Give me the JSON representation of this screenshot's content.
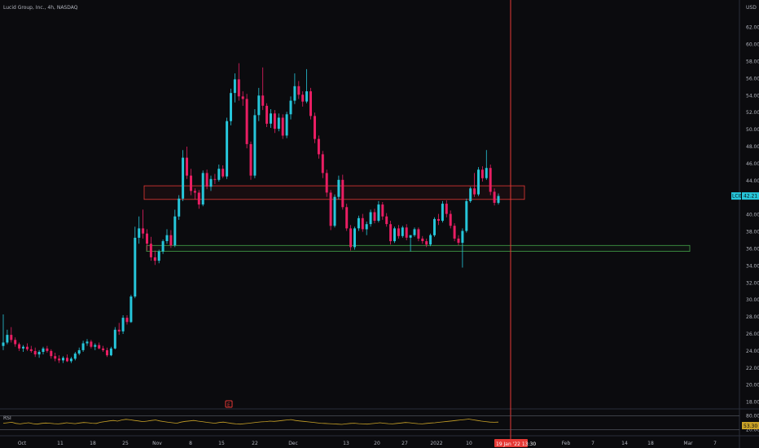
{
  "header": {
    "symbol_line": "Lucid Group, Inc., 4h, NASDAQ",
    "currency": "USD"
  },
  "colors": {
    "background": "#0b0b0e",
    "up": "#26c6da",
    "down": "#e91e63",
    "resistance": "#e53935",
    "support": "#43a047",
    "cursor": "#e53935",
    "rsi_line": "#c9a227",
    "axis_text": "#b2b5be"
  },
  "price_badge": {
    "symbol": "LCID",
    "value": "42.21"
  },
  "event_badge": {
    "glyph": "E"
  },
  "cursor_label": {
    "text": "19 Jan '22 13:30"
  },
  "rsi": {
    "label": "RSI",
    "ticks": [
      "80.00",
      "20.00"
    ],
    "value_badge": "53.30",
    "levels": [
      80,
      20
    ],
    "values": [
      48,
      50,
      52,
      47,
      45,
      48,
      50,
      46,
      44,
      47,
      49,
      48,
      46,
      45,
      47,
      50,
      48,
      46,
      49,
      51,
      50,
      48,
      47,
      52,
      55,
      58,
      60,
      57,
      62,
      65,
      63,
      60,
      58,
      55,
      57,
      60,
      62,
      58,
      55,
      52,
      50,
      48,
      53,
      56,
      58,
      60,
      57,
      55,
      52,
      50,
      48,
      51,
      53,
      50,
      47,
      45,
      44,
      46,
      48,
      50,
      52,
      54,
      55,
      57,
      56,
      58,
      60,
      62,
      64,
      60,
      58,
      56,
      54,
      52,
      50,
      48,
      47,
      46,
      45,
      44,
      43,
      45,
      47,
      48,
      46,
      45,
      44,
      46,
      48,
      50,
      48,
      46,
      45,
      47,
      49,
      51,
      50,
      48,
      46,
      45,
      47,
      49,
      50,
      52,
      54,
      56,
      58,
      60,
      62,
      64,
      66,
      63,
      60,
      57,
      55,
      53,
      52,
      53
    ]
  },
  "chart_data": {
    "type": "candlestick",
    "title": "Lucid Group, Inc., 4h, NASDAQ",
    "ylabel": "USD",
    "ylim": [
      17.2,
      63.5
    ],
    "y_ticks": [
      "62.00",
      "60.00",
      "58.00",
      "56.00",
      "54.00",
      "52.00",
      "50.00",
      "48.00",
      "46.00",
      "44.00",
      "42.00",
      "40.00",
      "38.00",
      "36.00",
      "34.00",
      "32.00",
      "30.00",
      "28.00",
      "26.00",
      "24.00",
      "22.00",
      "20.00",
      "18.00"
    ],
    "x_ticks": [
      "Oct",
      "11",
      "18",
      "25",
      "Nov",
      "8",
      "15",
      "22",
      "Dec",
      "13",
      "20",
      "27",
      "2022",
      "10",
      "Feb",
      "7",
      "14",
      "18",
      "Mar",
      "7"
    ],
    "last_price": 42.21,
    "zones": [
      {
        "name": "resistance",
        "low": 41.8,
        "high": 43.4
      },
      {
        "name": "support",
        "low": 35.7,
        "high": 36.4
      }
    ],
    "candles": [
      [
        24.6,
        28.3,
        24.1,
        25.0
      ],
      [
        25.0,
        26.5,
        24.8,
        25.9
      ],
      [
        25.9,
        26.8,
        25.0,
        25.3
      ],
      [
        25.3,
        25.6,
        24.5,
        24.8
      ],
      [
        24.8,
        25.0,
        24.0,
        24.3
      ],
      [
        24.3,
        24.7,
        23.9,
        24.5
      ],
      [
        24.5,
        24.9,
        24.0,
        24.2
      ],
      [
        24.2,
        24.6,
        23.8,
        24.0
      ],
      [
        24.0,
        24.4,
        23.3,
        23.6
      ],
      [
        23.6,
        24.1,
        23.2,
        23.9
      ],
      [
        23.9,
        24.5,
        23.6,
        24.3
      ],
      [
        24.3,
        24.6,
        23.8,
        24.0
      ],
      [
        24.0,
        24.2,
        23.1,
        23.4
      ],
      [
        23.4,
        23.8,
        22.8,
        23.1
      ],
      [
        23.1,
        23.5,
        22.6,
        22.9
      ],
      [
        22.9,
        23.4,
        22.6,
        23.2
      ],
      [
        23.2,
        23.6,
        22.7,
        22.8
      ],
      [
        22.8,
        23.3,
        22.6,
        23.1
      ],
      [
        23.1,
        23.9,
        22.9,
        23.7
      ],
      [
        23.7,
        24.4,
        23.5,
        24.1
      ],
      [
        24.1,
        25.2,
        23.9,
        24.9
      ],
      [
        24.9,
        25.4,
        24.6,
        25.1
      ],
      [
        25.1,
        25.3,
        24.3,
        24.5
      ],
      [
        24.5,
        24.9,
        24.1,
        24.7
      ],
      [
        24.7,
        25.0,
        24.2,
        24.3
      ],
      [
        24.3,
        24.6,
        23.9,
        24.1
      ],
      [
        24.1,
        24.4,
        23.3,
        23.5
      ],
      [
        23.5,
        24.5,
        23.4,
        24.3
      ],
      [
        24.3,
        26.8,
        24.2,
        26.5
      ],
      [
        26.5,
        27.3,
        25.9,
        26.3
      ],
      [
        26.3,
        28.2,
        26.0,
        27.9
      ],
      [
        27.9,
        28.2,
        27.1,
        27.4
      ],
      [
        27.4,
        30.6,
        27.3,
        30.4
      ],
      [
        30.4,
        38.6,
        30.2,
        37.3
      ],
      [
        37.3,
        39.8,
        36.6,
        38.4
      ],
      [
        38.4,
        40.6,
        37.2,
        37.8
      ],
      [
        37.8,
        38.3,
        35.8,
        36.6
      ],
      [
        36.6,
        37.4,
        34.6,
        35.0
      ],
      [
        35.0,
        35.8,
        34.1,
        34.6
      ],
      [
        34.6,
        35.9,
        34.3,
        35.7
      ],
      [
        35.7,
        37.1,
        35.4,
        36.9
      ],
      [
        36.9,
        38.3,
        36.6,
        37.6
      ],
      [
        37.6,
        38.2,
        36.1,
        36.4
      ],
      [
        36.4,
        40.6,
        36.2,
        39.8
      ],
      [
        39.8,
        42.3,
        39.4,
        41.9
      ],
      [
        41.9,
        47.6,
        41.6,
        46.7
      ],
      [
        46.7,
        48.0,
        44.2,
        44.6
      ],
      [
        44.6,
        45.4,
        42.3,
        42.8
      ],
      [
        42.8,
        43.1,
        41.8,
        42.6
      ],
      [
        42.6,
        42.9,
        40.7,
        41.2
      ],
      [
        41.2,
        45.2,
        41.0,
        44.9
      ],
      [
        44.9,
        45.3,
        43.0,
        43.3
      ],
      [
        43.3,
        44.6,
        42.8,
        44.2
      ],
      [
        44.2,
        44.8,
        43.6,
        44.1
      ],
      [
        44.1,
        45.9,
        43.9,
        45.4
      ],
      [
        45.4,
        45.8,
        44.3,
        44.5
      ],
      [
        44.5,
        51.4,
        44.2,
        51.0
      ],
      [
        51.0,
        54.8,
        50.5,
        54.3
      ],
      [
        54.3,
        56.6,
        53.2,
        55.9
      ],
      [
        55.9,
        57.8,
        53.4,
        53.9
      ],
      [
        53.9,
        54.5,
        52.8,
        53.6
      ],
      [
        53.6,
        54.2,
        47.8,
        48.3
      ],
      [
        48.3,
        48.6,
        44.1,
        44.6
      ],
      [
        44.6,
        52.4,
        44.3,
        51.7
      ],
      [
        51.7,
        54.9,
        51.0,
        54.0
      ],
      [
        54.0,
        57.3,
        52.3,
        52.8
      ],
      [
        52.8,
        53.1,
        50.3,
        50.7
      ],
      [
        50.7,
        52.4,
        50.2,
        51.9
      ],
      [
        51.9,
        52.3,
        49.6,
        50.1
      ],
      [
        50.1,
        51.9,
        49.8,
        51.4
      ],
      [
        51.4,
        51.8,
        48.9,
        49.3
      ],
      [
        49.3,
        52.1,
        49.0,
        51.8
      ],
      [
        51.8,
        53.9,
        51.2,
        53.4
      ],
      [
        53.4,
        56.6,
        53.0,
        55.1
      ],
      [
        55.1,
        55.7,
        53.6,
        54.1
      ],
      [
        54.1,
        54.5,
        52.7,
        53.3
      ],
      [
        53.3,
        57.1,
        53.1,
        54.5
      ],
      [
        54.5,
        54.9,
        51.2,
        51.6
      ],
      [
        51.6,
        52.0,
        48.4,
        48.9
      ],
      [
        48.9,
        49.3,
        46.6,
        47.1
      ],
      [
        47.1,
        47.5,
        44.3,
        44.9
      ],
      [
        44.9,
        45.3,
        42.1,
        42.6
      ],
      [
        42.6,
        42.9,
        38.2,
        38.7
      ],
      [
        38.7,
        42.4,
        38.5,
        42.1
      ],
      [
        42.1,
        44.6,
        41.8,
        44.1
      ],
      [
        44.1,
        44.7,
        40.6,
        40.9
      ],
      [
        40.9,
        41.3,
        38.1,
        38.4
      ],
      [
        38.4,
        38.8,
        35.8,
        36.2
      ],
      [
        36.2,
        38.6,
        35.9,
        38.4
      ],
      [
        38.4,
        39.9,
        38.1,
        39.6
      ],
      [
        39.6,
        40.1,
        38.0,
        38.3
      ],
      [
        38.3,
        39.2,
        37.6,
        38.9
      ],
      [
        38.9,
        40.6,
        38.6,
        40.3
      ],
      [
        40.3,
        40.7,
        39.0,
        39.3
      ],
      [
        39.3,
        41.6,
        39.1,
        41.2
      ],
      [
        41.2,
        41.5,
        39.4,
        39.8
      ],
      [
        39.8,
        40.2,
        38.6,
        38.9
      ],
      [
        38.9,
        39.3,
        36.5,
        36.9
      ],
      [
        36.9,
        38.6,
        36.7,
        38.4
      ],
      [
        38.4,
        38.8,
        37.2,
        37.5
      ],
      [
        37.5,
        38.7,
        37.3,
        38.5
      ],
      [
        38.5,
        38.9,
        37.0,
        37.3
      ],
      [
        37.3,
        37.6,
        35.7,
        37.6
      ],
      [
        37.6,
        38.5,
        37.4,
        38.3
      ],
      [
        38.3,
        38.5,
        36.9,
        37.2
      ],
      [
        37.2,
        37.5,
        36.6,
        36.9
      ],
      [
        36.9,
        37.2,
        36.2,
        36.5
      ],
      [
        36.5,
        37.8,
        36.3,
        37.6
      ],
      [
        37.6,
        39.7,
        37.4,
        39.5
      ],
      [
        39.5,
        40.1,
        38.8,
        39.3
      ],
      [
        39.3,
        41.6,
        39.1,
        41.3
      ],
      [
        41.3,
        41.7,
        39.7,
        40.1
      ],
      [
        40.1,
        40.5,
        38.4,
        38.7
      ],
      [
        38.7,
        39.0,
        36.9,
        37.2
      ],
      [
        37.2,
        37.6,
        36.4,
        36.7
      ],
      [
        36.7,
        38.4,
        33.8,
        38.1
      ],
      [
        38.1,
        41.9,
        37.9,
        41.6
      ],
      [
        41.6,
        43.3,
        41.4,
        43.1
      ],
      [
        43.1,
        44.9,
        42.1,
        42.4
      ],
      [
        42.4,
        45.6,
        42.2,
        45.3
      ],
      [
        45.3,
        45.7,
        43.9,
        44.3
      ],
      [
        44.3,
        47.6,
        44.1,
        45.5
      ],
      [
        45.5,
        45.9,
        42.3,
        42.7
      ],
      [
        42.7,
        43.1,
        41.1,
        41.4
      ],
      [
        41.4,
        42.5,
        41.2,
        42.21
      ]
    ]
  }
}
